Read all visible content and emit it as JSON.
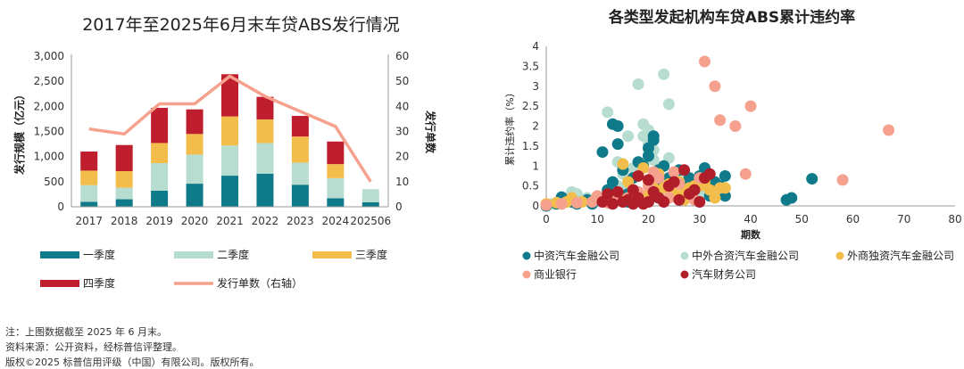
{
  "colors": {
    "q1": "#0f7a8a",
    "q2": "#b7ddd0",
    "q3": "#f3bd4b",
    "q4": "#bf1e2e",
    "count_line": "#f6a18e",
    "issuer_domestic": "#0f7a8a",
    "issuer_jv": "#b7ddd0",
    "issuer_foreign": "#f3bd4b",
    "issuer_bank": "#f6a18e",
    "issuer_finance_co": "#b01e2a",
    "grid": "#d9d9d9",
    "axis": "#999999"
  },
  "chart_data": [
    {
      "type": "bar",
      "stacked": true,
      "title": "2017年至2025年6月末车贷ABS发行情况",
      "ylabel": "发行规模（亿元）",
      "y2label": "发行单数",
      "ylim": [
        0,
        3000
      ],
      "y2lim": [
        0,
        60
      ],
      "yticks": [
        "0",
        "500",
        "1,000",
        "1,500",
        "2,000",
        "2,500",
        "3,000"
      ],
      "y2ticks": [
        "0",
        "10",
        "20",
        "30",
        "40",
        "50",
        "60"
      ],
      "categories": [
        "2017",
        "2018",
        "2019",
        "2020",
        "2021",
        "2022",
        "2023",
        "2024",
        "202506"
      ],
      "series": [
        {
          "name": "一季度",
          "values": [
            100,
            150,
            320,
            460,
            620,
            660,
            440,
            170,
            90
          ]
        },
        {
          "name": "二季度",
          "values": [
            330,
            230,
            550,
            580,
            600,
            610,
            440,
            400,
            260
          ]
        },
        {
          "name": "三季度",
          "values": [
            290,
            330,
            400,
            410,
            580,
            470,
            520,
            280,
            0
          ]
        },
        {
          "name": "四季度",
          "values": [
            380,
            520,
            700,
            490,
            840,
            450,
            410,
            450,
            0
          ]
        }
      ],
      "line_series": {
        "name": "发行单数（右轴）",
        "values": [
          31,
          29,
          41,
          41,
          52,
          44,
          38,
          32,
          10
        ]
      },
      "legend": [
        "一季度",
        "二季度",
        "三季度",
        "四季度",
        "发行单数（右轴）"
      ]
    },
    {
      "type": "scatter",
      "title": "各类型发起机构车贷ABS累计违约率",
      "xlabel": "期数",
      "ylabel": "累计违约率（%）",
      "xlim": [
        0,
        80
      ],
      "ylim": [
        0,
        4
      ],
      "xticks": [
        "0",
        "10",
        "20",
        "30",
        "40",
        "50",
        "60",
        "70",
        "80"
      ],
      "yticks": [
        "0",
        "0.5",
        "1",
        "1.5",
        "2",
        "2.5",
        "3",
        "3.5",
        "4"
      ],
      "series": [
        {
          "name": "中资汽车金融公司",
          "points": [
            [
              0,
              0
            ],
            [
              2,
              0.05
            ],
            [
              3,
              0.22
            ],
            [
              5,
              0.1
            ],
            [
              6,
              0.05
            ],
            [
              8,
              0.15
            ],
            [
              10,
              0.18
            ],
            [
              11,
              1.35
            ],
            [
              12,
              0.4
            ],
            [
              13,
              0.6
            ],
            [
              14,
              2.0
            ],
            [
              14,
              1.55
            ],
            [
              15,
              0.9
            ],
            [
              16,
              0.3
            ],
            [
              17,
              0.7
            ],
            [
              18,
              1.1
            ],
            [
              19,
              1.0
            ],
            [
              20,
              1.45
            ],
            [
              20,
              1.25
            ],
            [
              21,
              1.65
            ],
            [
              21,
              1.75
            ],
            [
              22,
              0.5
            ],
            [
              22,
              0.9
            ],
            [
              23,
              1.0
            ],
            [
              24,
              0.7
            ],
            [
              25,
              0.25
            ],
            [
              26,
              0.9
            ],
            [
              27,
              0.5
            ],
            [
              28,
              0.7
            ],
            [
              29,
              0.4
            ],
            [
              30,
              0.75
            ],
            [
              31,
              0.95
            ],
            [
              32,
              0.25
            ],
            [
              33,
              0.6
            ],
            [
              34,
              0.5
            ],
            [
              35,
              0.75
            ],
            [
              35,
              0.25
            ],
            [
              13,
              2.05
            ],
            [
              22,
              0.2
            ],
            [
              47,
              0.15
            ],
            [
              48,
              0.2
            ],
            [
              52,
              0.68
            ],
            [
              9,
              0.05
            ],
            [
              16,
              0.1
            ]
          ]
        },
        {
          "name": "中外合资汽车金融公司",
          "points": [
            [
              1,
              0.05
            ],
            [
              3,
              0.1
            ],
            [
              4,
              0.15
            ],
            [
              5,
              0.35
            ],
            [
              6,
              0.3
            ],
            [
              8,
              0.2
            ],
            [
              10,
              0.15
            ],
            [
              12,
              2.35
            ],
            [
              12,
              0.2
            ],
            [
              13,
              0.55
            ],
            [
              14,
              0.5
            ],
            [
              14,
              1.1
            ],
            [
              15,
              0.8
            ],
            [
              16,
              0.4
            ],
            [
              17,
              0.95
            ],
            [
              18,
              1.05
            ],
            [
              18,
              3.05
            ],
            [
              19,
              2.05
            ],
            [
              19,
              1.75
            ],
            [
              20,
              1.9
            ],
            [
              20,
              1.55
            ],
            [
              20,
              1.3
            ],
            [
              21,
              1.4
            ],
            [
              21,
              1.15
            ],
            [
              22,
              0.35
            ],
            [
              23,
              3.3
            ],
            [
              24,
              2.55
            ],
            [
              24,
              1.2
            ],
            [
              25,
              0.8
            ],
            [
              26,
              0.85
            ],
            [
              27,
              0.6
            ],
            [
              28,
              0.65
            ],
            [
              29,
              0.45
            ],
            [
              30,
              0.25
            ],
            [
              31,
              0.3
            ],
            [
              16,
              1.75
            ],
            [
              22,
              0.75
            ],
            [
              18,
              0.3
            ]
          ]
        },
        {
          "name": "外商独资汽车金融公司",
          "points": [
            [
              0,
              0.05
            ],
            [
              2,
              0.08
            ],
            [
              3,
              0.05
            ],
            [
              4,
              0.1
            ],
            [
              5,
              0.2
            ],
            [
              6,
              0.08
            ],
            [
              7,
              0.1
            ],
            [
              12,
              0.15
            ],
            [
              14,
              0.3
            ],
            [
              15,
              1.05
            ],
            [
              16,
              0.6
            ],
            [
              17,
              0.4
            ],
            [
              18,
              0.3
            ],
            [
              19,
              0.95
            ],
            [
              20,
              0.6
            ],
            [
              21,
              0.45
            ],
            [
              22,
              0.8
            ],
            [
              23,
              0.45
            ],
            [
              24,
              0.55
            ],
            [
              25,
              0.3
            ],
            [
              26,
              0.6
            ],
            [
              27,
              0.35
            ],
            [
              28,
              0.45
            ],
            [
              29,
              0.5
            ],
            [
              30,
              0.5
            ],
            [
              31,
              0.6
            ],
            [
              32,
              0.4
            ],
            [
              33,
              0.2
            ],
            [
              34,
              0.45
            ],
            [
              35,
              0.45
            ],
            [
              20,
              0.3
            ],
            [
              27,
              0.15
            ]
          ]
        },
        {
          "name": "商业银行",
          "points": [
            [
              0,
              0.02
            ],
            [
              3,
              0.05
            ],
            [
              6,
              0.08
            ],
            [
              9,
              0.1
            ],
            [
              12,
              0.08
            ],
            [
              14,
              0.15
            ],
            [
              16,
              0.2
            ],
            [
              18,
              0.35
            ],
            [
              20,
              0.5
            ],
            [
              22,
              0.7
            ],
            [
              24,
              0.2
            ],
            [
              26,
              0.55
            ],
            [
              28,
              0.3
            ],
            [
              30,
              0.7
            ],
            [
              31,
              3.62
            ],
            [
              33,
              3.0
            ],
            [
              34,
              2.15
            ],
            [
              37,
              2.0
            ],
            [
              39,
              0.8
            ],
            [
              40,
              2.5
            ],
            [
              58,
              0.65
            ],
            [
              67,
              1.9
            ],
            [
              25,
              0.85
            ],
            [
              29,
              0.15
            ],
            [
              10,
              0.25
            ],
            [
              21,
              0.85
            ]
          ]
        },
        {
          "name": "汽车财务公司",
          "points": [
            [
              11,
              0.1
            ],
            [
              12,
              0.3
            ],
            [
              13,
              0.05
            ],
            [
              14,
              0.35
            ],
            [
              15,
              0.1
            ],
            [
              16,
              0.15
            ],
            [
              17,
              0.05
            ],
            [
              18,
              0.2
            ],
            [
              18,
              0.75
            ],
            [
              19,
              0.05
            ],
            [
              20,
              0.1
            ],
            [
              21,
              0.35
            ],
            [
              22,
              0.2
            ],
            [
              23,
              0.1
            ],
            [
              24,
              0.5
            ],
            [
              25,
              0.6
            ],
            [
              26,
              0.15
            ],
            [
              27,
              0.9
            ],
            [
              28,
              0.3
            ],
            [
              29,
              0.4
            ],
            [
              30,
              0.1
            ],
            [
              31,
              0.7
            ],
            [
              32,
              0.8
            ],
            [
              20,
              0.65
            ],
            [
              17,
              0.4
            ]
          ]
        }
      ]
    }
  ],
  "notes": [
    "注：上图数据截至 2025 年 6 月末。",
    "资料来源：公开资料，经标普信评整理。",
    "版权©2025 标普信用评级（中国）有限公司。版权所有。"
  ]
}
